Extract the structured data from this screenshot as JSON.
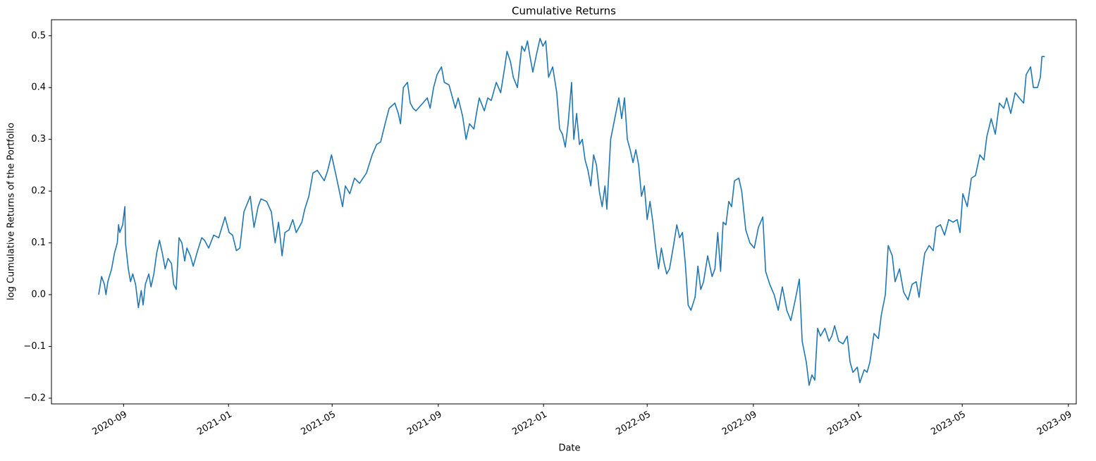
{
  "chart_data": {
    "type": "line",
    "title": "Cumulative Returns",
    "x_label": "Date",
    "y_label": "log Cumulative Returns of the Portfolio",
    "color": "#1f77b4",
    "xlim": [
      2020.438,
      2023.691
    ],
    "xticks": [
      {
        "value": 2020.667,
        "label": "2020-09"
      },
      {
        "value": 2021.0,
        "label": "2021-01"
      },
      {
        "value": 2021.329,
        "label": "2021-05"
      },
      {
        "value": 2021.666,
        "label": "2021-09"
      },
      {
        "value": 2022.0,
        "label": "2022-01"
      },
      {
        "value": 2022.329,
        "label": "2022-05"
      },
      {
        "value": 2022.666,
        "label": "2022-09"
      },
      {
        "value": 2023.0,
        "label": "2023-01"
      },
      {
        "value": 2023.329,
        "label": "2023-05"
      },
      {
        "value": 2023.666,
        "label": "2023-09"
      }
    ],
    "ylim": [
      -0.211,
      0.531
    ],
    "yticks": [
      {
        "value": -0.2,
        "label": "−0.2"
      },
      {
        "value": -0.1,
        "label": "−0.1"
      },
      {
        "value": 0,
        "label": "0.0"
      },
      0.1,
      0.2,
      0.3,
      0.4,
      0.5
    ],
    "x": [
      2020.588,
      2020.597,
      2020.606,
      2020.611,
      2020.617,
      2020.629,
      2020.638,
      2020.647,
      2020.651,
      2020.655,
      2020.664,
      2020.671,
      2020.673,
      2020.682,
      2020.689,
      2020.696,
      2020.705,
      2020.714,
      2020.723,
      2020.729,
      2020.736,
      2020.747,
      2020.754,
      2020.763,
      2020.772,
      2020.781,
      2020.79,
      2020.799,
      2020.808,
      2020.819,
      2020.826,
      2020.834,
      2020.843,
      2020.852,
      2020.861,
      2020.868,
      2020.879,
      2020.888,
      2020.902,
      2020.915,
      2020.924,
      2020.937,
      2020.953,
      2020.969,
      2020.989,
      2021.002,
      2021.013,
      2021.025,
      2021.036,
      2021.049,
      2021.069,
      2021.081,
      2021.094,
      2021.103,
      2021.121,
      2021.136,
      2021.148,
      2021.159,
      2021.17,
      2021.179,
      2021.192,
      2021.204,
      2021.215,
      2021.233,
      2021.242,
      2021.255,
      2021.268,
      2021.282,
      2021.304,
      2021.315,
      2021.327,
      2021.345,
      2021.362,
      2021.371,
      2021.385,
      2021.4,
      2021.416,
      2021.438,
      2021.456,
      2021.47,
      2021.483,
      2021.497,
      2021.51,
      2021.528,
      2021.539,
      2021.546,
      2021.555,
      2021.568,
      2021.577,
      2021.586,
      2021.595,
      2021.617,
      2021.631,
      2021.64,
      2021.651,
      2021.662,
      2021.676,
      2021.685,
      2021.7,
      2021.709,
      2021.72,
      2021.729,
      2021.743,
      2021.754,
      2021.765,
      2021.779,
      2021.787,
      2021.796,
      2021.812,
      2021.823,
      2021.834,
      2021.85,
      2021.864,
      2021.877,
      2021.884,
      2021.895,
      2021.904,
      2021.917,
      2021.931,
      2021.94,
      2021.949,
      2021.957,
      2021.966,
      2021.978,
      2021.989,
      2021.998,
      2022.007,
      2022.016,
      2022.029,
      2022.042,
      2022.051,
      2022.06,
      2022.069,
      2022.078,
      2022.089,
      2022.096,
      2022.105,
      2022.114,
      2022.123,
      2022.132,
      2022.141,
      2022.15,
      2022.159,
      2022.168,
      2022.177,
      2022.186,
      2022.195,
      2022.201,
      2022.213,
      2022.226,
      2022.239,
      2022.248,
      2022.257,
      2022.266,
      2022.275,
      2022.284,
      2022.293,
      2022.302,
      2022.311,
      2022.32,
      2022.329,
      2022.338,
      2022.347,
      2022.356,
      2022.365,
      2022.374,
      2022.383,
      2022.391,
      2022.4,
      2022.414,
      2022.423,
      2022.432,
      2022.441,
      2022.45,
      2022.459,
      2022.468,
      2022.481,
      2022.49,
      2022.499,
      2022.508,
      2022.521,
      2022.535,
      2022.544,
      2022.553,
      2022.562,
      2022.57,
      2022.579,
      2022.588,
      2022.597,
      2022.606,
      2022.62,
      2022.629,
      2022.642,
      2022.655,
      2022.669,
      2022.682,
      2022.696,
      2022.705,
      2022.718,
      2022.732,
      2022.745,
      2022.758,
      2022.772,
      2022.785,
      2022.799,
      2022.812,
      2022.821,
      2022.834,
      2022.843,
      2022.852,
      2022.861,
      2022.87,
      2022.879,
      2022.893,
      2022.906,
      2022.915,
      2022.924,
      2022.937,
      2022.951,
      2022.964,
      2022.973,
      2022.982,
      2022.996,
      2023.004,
      2023.018,
      2023.027,
      2023.036,
      2023.049,
      2023.063,
      2023.072,
      2023.085,
      2023.094,
      2023.107,
      2023.116,
      2023.13,
      2023.143,
      2023.157,
      2023.17,
      2023.183,
      2023.192,
      2023.201,
      2023.21,
      2023.224,
      2023.237,
      2023.246,
      2023.26,
      2023.273,
      2023.286,
      2023.3,
      2023.313,
      2023.322,
      2023.331,
      2023.345,
      2023.358,
      2023.371,
      2023.385,
      2023.398,
      2023.407,
      2023.421,
      2023.434,
      2023.447,
      2023.461,
      2023.47,
      2023.483,
      2023.497,
      2023.51,
      2023.524,
      2023.532,
      2023.546,
      2023.555,
      2023.568,
      2023.577,
      2023.582,
      2023.591
    ],
    "values": [
      0.0,
      0.035,
      0.02,
      0.0,
      0.025,
      0.05,
      0.08,
      0.1,
      0.135,
      0.12,
      0.135,
      0.17,
      0.1,
      0.05,
      0.025,
      0.04,
      0.02,
      -0.025,
      0.008,
      -0.02,
      0.02,
      0.04,
      0.015,
      0.04,
      0.08,
      0.105,
      0.08,
      0.05,
      0.07,
      0.06,
      0.02,
      0.01,
      0.11,
      0.1,
      0.065,
      0.09,
      0.075,
      0.055,
      0.085,
      0.11,
      0.105,
      0.09,
      0.115,
      0.11,
      0.15,
      0.12,
      0.115,
      0.085,
      0.09,
      0.16,
      0.19,
      0.13,
      0.17,
      0.185,
      0.18,
      0.16,
      0.1,
      0.14,
      0.075,
      0.12,
      0.125,
      0.145,
      0.12,
      0.14,
      0.165,
      0.19,
      0.235,
      0.24,
      0.22,
      0.24,
      0.27,
      0.22,
      0.17,
      0.21,
      0.195,
      0.225,
      0.215,
      0.235,
      0.27,
      0.29,
      0.295,
      0.33,
      0.36,
      0.37,
      0.35,
      0.33,
      0.4,
      0.41,
      0.37,
      0.36,
      0.355,
      0.37,
      0.38,
      0.36,
      0.4,
      0.425,
      0.44,
      0.41,
      0.405,
      0.385,
      0.36,
      0.38,
      0.345,
      0.3,
      0.33,
      0.32,
      0.35,
      0.38,
      0.355,
      0.38,
      0.375,
      0.41,
      0.39,
      0.44,
      0.47,
      0.45,
      0.42,
      0.4,
      0.48,
      0.47,
      0.49,
      0.46,
      0.43,
      0.465,
      0.495,
      0.48,
      0.49,
      0.42,
      0.44,
      0.39,
      0.32,
      0.31,
      0.285,
      0.33,
      0.41,
      0.3,
      0.35,
      0.29,
      0.3,
      0.26,
      0.24,
      0.21,
      0.27,
      0.25,
      0.2,
      0.17,
      0.21,
      0.165,
      0.3,
      0.34,
      0.38,
      0.34,
      0.38,
      0.3,
      0.28,
      0.255,
      0.28,
      0.25,
      0.19,
      0.21,
      0.145,
      0.18,
      0.14,
      0.09,
      0.05,
      0.09,
      0.06,
      0.04,
      0.05,
      0.1,
      0.135,
      0.11,
      0.12,
      0.06,
      -0.02,
      -0.03,
      -0.005,
      0.055,
      0.01,
      0.025,
      0.075,
      0.035,
      0.05,
      0.12,
      0.045,
      0.14,
      0.135,
      0.18,
      0.17,
      0.22,
      0.225,
      0.2,
      0.125,
      0.1,
      0.09,
      0.13,
      0.15,
      0.045,
      0.02,
      0.0,
      -0.03,
      0.015,
      -0.03,
      -0.05,
      -0.01,
      0.03,
      -0.09,
      -0.13,
      -0.175,
      -0.155,
      -0.165,
      -0.065,
      -0.08,
      -0.065,
      -0.09,
      -0.08,
      -0.06,
      -0.09,
      -0.095,
      -0.08,
      -0.13,
      -0.15,
      -0.14,
      -0.17,
      -0.145,
      -0.15,
      -0.13,
      -0.075,
      -0.085,
      -0.04,
      0.0,
      0.095,
      0.075,
      0.025,
      0.05,
      0.005,
      -0.01,
      0.02,
      0.025,
      -0.005,
      0.04,
      0.08,
      0.095,
      0.085,
      0.13,
      0.135,
      0.115,
      0.145,
      0.14,
      0.145,
      0.12,
      0.195,
      0.17,
      0.225,
      0.23,
      0.27,
      0.26,
      0.305,
      0.34,
      0.31,
      0.37,
      0.36,
      0.38,
      0.35,
      0.39,
      0.38,
      0.37,
      0.425,
      0.44,
      0.4,
      0.4,
      0.42,
      0.46,
      0.46
    ]
  }
}
